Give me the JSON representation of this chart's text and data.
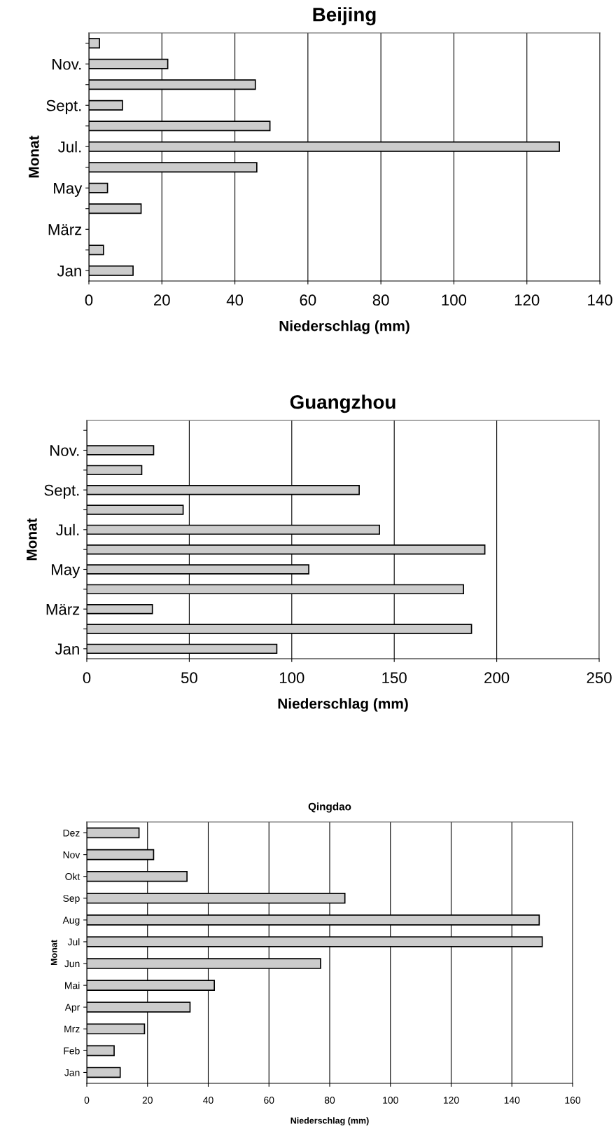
{
  "chart_data": [
    {
      "type": "bar",
      "orientation": "horizontal",
      "title": "Beijing",
      "xlabel": "Niederschlag (mm)",
      "ylabel": "Monat",
      "categories": [
        null,
        "Nov.",
        null,
        "Sept.",
        null,
        "Jul.",
        null,
        "May",
        null,
        "März",
        null,
        "Jan"
      ],
      "values": [
        2.9,
        21.6,
        45.6,
        9.2,
        49.6,
        128.9,
        46,
        5.1,
        14.3,
        null,
        4,
        12.1
      ],
      "color": "#cccccc",
      "xlim": [
        0,
        140
      ],
      "xticks": [
        0,
        20,
        40,
        60,
        80,
        100,
        120,
        140
      ],
      "grid": "x"
    },
    {
      "type": "bar",
      "orientation": "horizontal",
      "title": "Guangzhou",
      "xlabel": "Niederschlag (mm)",
      "ylabel": "Monat",
      "categories": [
        null,
        "Nov.",
        null,
        "Sept.",
        null,
        "Jul.",
        null,
        "May",
        null,
        "März",
        null,
        "Jan"
      ],
      "values": [
        null,
        32.6,
        26.8,
        132.9,
        47,
        142.8,
        194.2,
        108.3,
        183.8,
        32,
        187.7,
        92.7
      ],
      "color": "#cccccc",
      "xlim": [
        0,
        250
      ],
      "xticks": [
        0,
        50,
        100,
        150,
        200,
        250
      ],
      "grid": "x"
    },
    {
      "type": "bar",
      "orientation": "horizontal",
      "title": "Qingdao",
      "xlabel": "Niederschlag (mm)",
      "ylabel": "Monat",
      "categories": [
        "Dez",
        "Nov",
        "Okt",
        "Sep",
        "Aug",
        "Jul",
        "Jun",
        "Mai",
        "Apr",
        "Mrz",
        "Feb",
        "Jan"
      ],
      "values": [
        17.2,
        22,
        33,
        85,
        149,
        150,
        77,
        42,
        34,
        19,
        9,
        11
      ],
      "color": "#cccccc",
      "xlim": [
        0,
        160
      ],
      "xticks": [
        0,
        20,
        40,
        60,
        80,
        100,
        120,
        140,
        160
      ],
      "grid": "x"
    }
  ]
}
